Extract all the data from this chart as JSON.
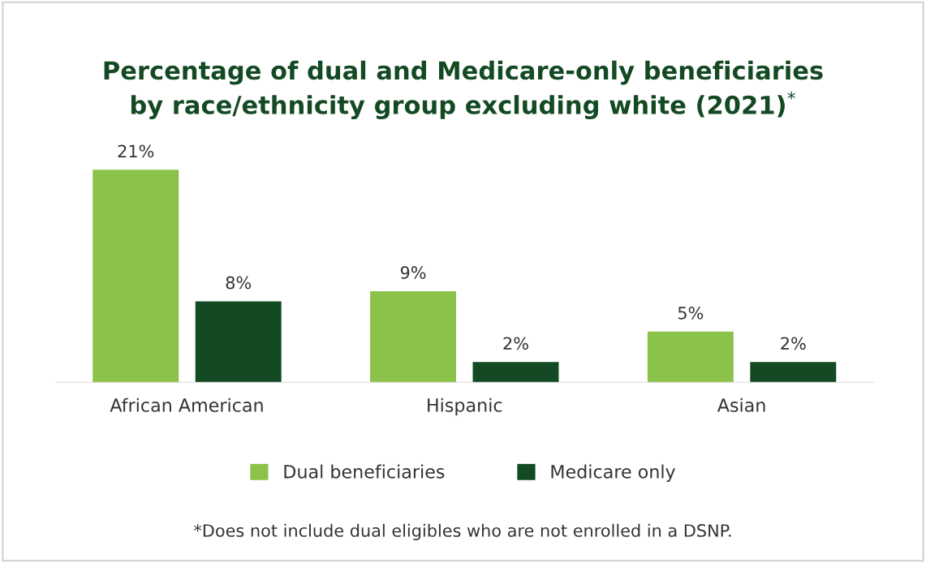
{
  "chart_data": {
    "type": "bar",
    "title": "Percentage of dual and Medicare-only beneficiaries\nby race/ethnicity group excluding white (2021)$^{*}$",
    "categories": [
      "African American",
      "Hispanic",
      "Asian"
    ],
    "series": [
      {
        "name": "Dual beneficiaries",
        "color": "#8bc34a",
        "values": [
          21,
          9,
          5
        ],
        "value_labels": [
          "21%",
          "9%",
          "5%"
        ]
      },
      {
        "name": "Medicare only",
        "color": "#134a23",
        "values": [
          8,
          2,
          2
        ],
        "value_labels": [
          "8%",
          "2%",
          "2%"
        ]
      }
    ],
    "legend": "bottom",
    "grid": false,
    "annotations": [
      "*Does not include dual eligibles who are not enrolled in a DSNP."
    ]
  }
}
